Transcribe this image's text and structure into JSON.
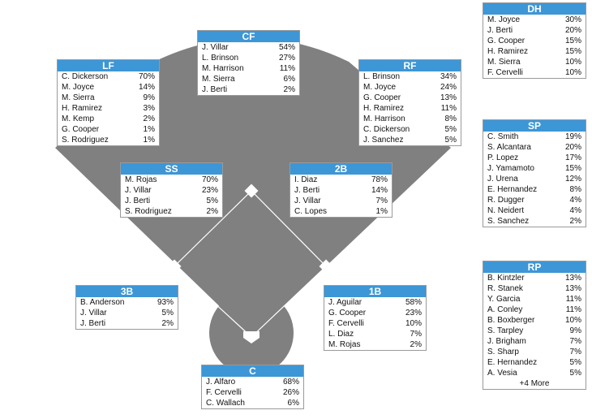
{
  "colors": {
    "field": "#808080",
    "header": "#3d96d6",
    "base": "#ffffff"
  },
  "positions": {
    "cf": {
      "title": "CF",
      "players": [
        {
          "name": "J. Villar",
          "pct": "54%"
        },
        {
          "name": "L. Brinson",
          "pct": "27%"
        },
        {
          "name": "M. Harrison",
          "pct": "11%"
        },
        {
          "name": "M. Sierra",
          "pct": "6%"
        },
        {
          "name": "J. Berti",
          "pct": "2%"
        }
      ]
    },
    "lf": {
      "title": "LF",
      "players": [
        {
          "name": "C. Dickerson",
          "pct": "70%"
        },
        {
          "name": "M. Joyce",
          "pct": "14%"
        },
        {
          "name": "M. Sierra",
          "pct": "9%"
        },
        {
          "name": "H. Ramirez",
          "pct": "3%"
        },
        {
          "name": "M. Kemp",
          "pct": "2%"
        },
        {
          "name": "G. Cooper",
          "pct": "1%"
        },
        {
          "name": "S. Rodriguez",
          "pct": "1%"
        }
      ]
    },
    "rf": {
      "title": "RF",
      "players": [
        {
          "name": "L. Brinson",
          "pct": "34%"
        },
        {
          "name": "M. Joyce",
          "pct": "24%"
        },
        {
          "name": "G. Cooper",
          "pct": "13%"
        },
        {
          "name": "H. Ramirez",
          "pct": "11%"
        },
        {
          "name": "M. Harrison",
          "pct": "8%"
        },
        {
          "name": "C. Dickerson",
          "pct": "5%"
        },
        {
          "name": "J. Sanchez",
          "pct": "5%"
        }
      ]
    },
    "ss": {
      "title": "SS",
      "players": [
        {
          "name": "M. Rojas",
          "pct": "70%"
        },
        {
          "name": "J. Villar",
          "pct": "23%"
        },
        {
          "name": "J. Berti",
          "pct": "5%"
        },
        {
          "name": "S. Rodriguez",
          "pct": "2%"
        }
      ]
    },
    "2b": {
      "title": "2B",
      "players": [
        {
          "name": "I. Diaz",
          "pct": "78%"
        },
        {
          "name": "J. Berti",
          "pct": "14%"
        },
        {
          "name": "J. Villar",
          "pct": "7%"
        },
        {
          "name": "C. Lopes",
          "pct": "1%"
        }
      ]
    },
    "3b": {
      "title": "3B",
      "players": [
        {
          "name": "B. Anderson",
          "pct": "93%"
        },
        {
          "name": "J. Villar",
          "pct": "5%"
        },
        {
          "name": "J. Berti",
          "pct": "2%"
        }
      ]
    },
    "1b": {
      "title": "1B",
      "players": [
        {
          "name": "J. Aguilar",
          "pct": "58%"
        },
        {
          "name": "G. Cooper",
          "pct": "23%"
        },
        {
          "name": "F. Cervelli",
          "pct": "10%"
        },
        {
          "name": "L. Diaz",
          "pct": "7%"
        },
        {
          "name": "M. Rojas",
          "pct": "2%"
        }
      ]
    },
    "c": {
      "title": "C",
      "players": [
        {
          "name": "J. Alfaro",
          "pct": "68%"
        },
        {
          "name": "F. Cervelli",
          "pct": "26%"
        },
        {
          "name": "C. Wallach",
          "pct": "6%"
        }
      ]
    },
    "dh": {
      "title": "DH",
      "players": [
        {
          "name": "M. Joyce",
          "pct": "30%"
        },
        {
          "name": "J. Berti",
          "pct": "20%"
        },
        {
          "name": "G. Cooper",
          "pct": "15%"
        },
        {
          "name": "H. Ramirez",
          "pct": "15%"
        },
        {
          "name": "M. Sierra",
          "pct": "10%"
        },
        {
          "name": "F. Cervelli",
          "pct": "10%"
        }
      ]
    },
    "sp": {
      "title": "SP",
      "players": [
        {
          "name": "C. Smith",
          "pct": "19%"
        },
        {
          "name": "S. Alcantara",
          "pct": "20%"
        },
        {
          "name": "P. Lopez",
          "pct": "17%"
        },
        {
          "name": "J. Yamamoto",
          "pct": "15%"
        },
        {
          "name": "J. Urena",
          "pct": "12%"
        },
        {
          "name": "E. Hernandez",
          "pct": "8%"
        },
        {
          "name": "R. Dugger",
          "pct": "4%"
        },
        {
          "name": "N. Neidert",
          "pct": "4%"
        },
        {
          "name": "S. Sanchez",
          "pct": "2%"
        }
      ]
    },
    "rp": {
      "title": "RP",
      "more": "+4 More",
      "players": [
        {
          "name": "B. Kintzler",
          "pct": "13%"
        },
        {
          "name": "R. Stanek",
          "pct": "13%"
        },
        {
          "name": "Y. Garcia",
          "pct": "11%"
        },
        {
          "name": "A. Conley",
          "pct": "11%"
        },
        {
          "name": "B. Boxberger",
          "pct": "10%"
        },
        {
          "name": "S. Tarpley",
          "pct": "9%"
        },
        {
          "name": "J. Brigham",
          "pct": "7%"
        },
        {
          "name": "S. Sharp",
          "pct": "7%"
        },
        {
          "name": "E. Hernandez",
          "pct": "5%"
        },
        {
          "name": "A. Vesia",
          "pct": "5%"
        }
      ]
    }
  }
}
